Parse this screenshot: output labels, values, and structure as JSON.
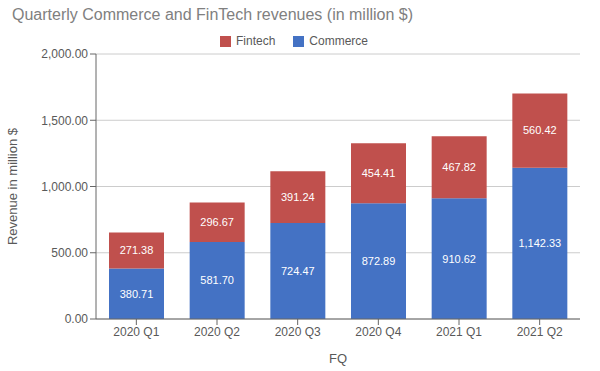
{
  "chart_data": {
    "type": "bar",
    "title": "Quarterly Commerce and FinTech revenues (in million $)",
    "xlabel": "FQ",
    "ylabel": "Revenue in million $",
    "categories": [
      "2020 Q1",
      "2020 Q2",
      "2020 Q3",
      "2020 Q4",
      "2021 Q1",
      "2021 Q2"
    ],
    "series": [
      {
        "name": "Commerce",
        "color": "#4472C4",
        "values": [
          380.71,
          581.7,
          724.47,
          872.89,
          910.62,
          1142.33
        ],
        "value_labels": [
          "380.71",
          "581.70",
          "724.47",
          "872.89",
          "910.62",
          "1,142.33"
        ]
      },
      {
        "name": "Fintech",
        "color": "#C0504D",
        "values": [
          271.38,
          296.67,
          391.24,
          454.41,
          467.82,
          560.42
        ],
        "value_labels": [
          "271.38",
          "296.67",
          "391.24",
          "454.41",
          "467.82",
          "560.42"
        ]
      }
    ],
    "stacked": true,
    "data_labels": true,
    "grid": true,
    "legend": "top",
    "ylim": [
      0,
      2000
    ],
    "yticks": [
      {
        "value": 0,
        "label": "0.00"
      },
      {
        "value": 500,
        "label": "500.00"
      },
      {
        "value": 1000,
        "label": "1,000.00"
      },
      {
        "value": 1500,
        "label": "1,500.00"
      },
      {
        "value": 2000,
        "label": "2,000.00"
      }
    ]
  }
}
